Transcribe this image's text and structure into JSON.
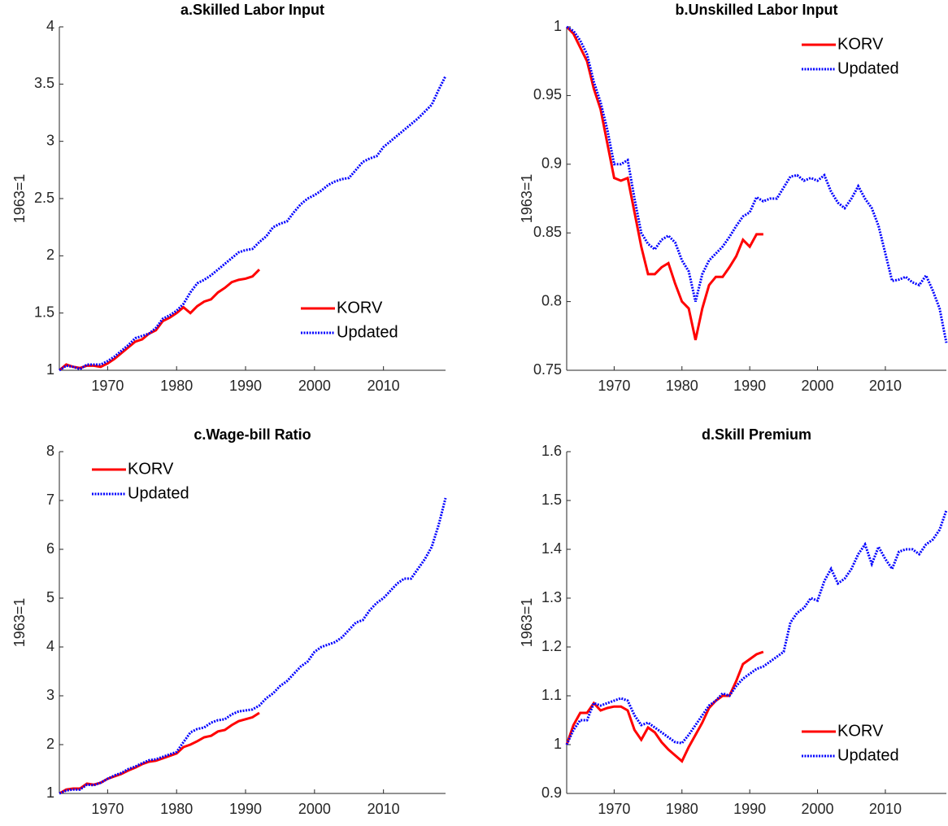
{
  "chart_data": [
    {
      "type": "line",
      "title": "a.Skilled Labor Input",
      "ylabel": "1963=1",
      "x": [
        1963,
        1964,
        1965,
        1966,
        1967,
        1968,
        1969,
        1970,
        1971,
        1972,
        1973,
        1974,
        1975,
        1976,
        1977,
        1978,
        1979,
        1980,
        1981,
        1982,
        1983,
        1984,
        1985,
        1986,
        1987,
        1988,
        1989,
        1990,
        1991,
        1992,
        1993,
        1994,
        1995,
        1996,
        1997,
        1998,
        1999,
        2000,
        2001,
        2002,
        2003,
        2004,
        2005,
        2006,
        2007,
        2008,
        2009,
        2010,
        2011,
        2012,
        2013,
        2014,
        2015,
        2016,
        2017,
        2018,
        2019
      ],
      "xlim": [
        1963,
        2019
      ],
      "xticks": [
        1970,
        1980,
        1990,
        2000,
        2010
      ],
      "ylim": [
        1,
        4
      ],
      "yticks": [
        1,
        1.5,
        2,
        2.5,
        3,
        3.5,
        4
      ],
      "legend": "lower right",
      "series": [
        {
          "name": "KORV",
          "color": "#ff0000",
          "linestyle": "solid",
          "values": [
            1.0,
            1.05,
            1.03,
            1.02,
            1.04,
            1.04,
            1.03,
            1.06,
            1.1,
            1.15,
            1.2,
            1.25,
            1.27,
            1.32,
            1.35,
            1.43,
            1.46,
            1.5,
            1.55,
            1.5,
            1.56,
            1.6,
            1.62,
            1.68,
            1.72,
            1.77,
            1.79,
            1.8,
            1.82,
            1.88,
            null,
            null,
            null,
            null,
            null,
            null,
            null,
            null,
            null,
            null,
            null,
            null,
            null,
            null,
            null,
            null,
            null,
            null,
            null,
            null,
            null,
            null,
            null,
            null,
            null,
            null,
            null
          ]
        },
        {
          "name": "Updated",
          "color": "#0000ff",
          "linestyle": "dotted",
          "values": [
            1.0,
            1.04,
            1.03,
            1.01,
            1.05,
            1.05,
            1.05,
            1.08,
            1.12,
            1.17,
            1.22,
            1.28,
            1.3,
            1.32,
            1.37,
            1.45,
            1.48,
            1.52,
            1.58,
            1.68,
            1.76,
            1.79,
            1.83,
            1.88,
            1.93,
            1.98,
            2.03,
            2.05,
            2.06,
            2.12,
            2.17,
            2.25,
            2.28,
            2.3,
            2.38,
            2.45,
            2.5,
            2.53,
            2.57,
            2.62,
            2.65,
            2.67,
            2.68,
            2.75,
            2.82,
            2.85,
            2.87,
            2.95,
            3.0,
            3.05,
            3.1,
            3.15,
            3.2,
            3.26,
            3.32,
            3.45,
            3.57
          ]
        }
      ]
    },
    {
      "type": "line",
      "title": "b.Unskilled Labor Input",
      "ylabel": "1963=1",
      "x": [
        1963,
        1964,
        1965,
        1966,
        1967,
        1968,
        1969,
        1970,
        1971,
        1972,
        1973,
        1974,
        1975,
        1976,
        1977,
        1978,
        1979,
        1980,
        1981,
        1982,
        1983,
        1984,
        1985,
        1986,
        1987,
        1988,
        1989,
        1990,
        1991,
        1992,
        1993,
        1994,
        1995,
        1996,
        1997,
        1998,
        1999,
        2000,
        2001,
        2002,
        2003,
        2004,
        2005,
        2006,
        2007,
        2008,
        2009,
        2010,
        2011,
        2012,
        2013,
        2014,
        2015,
        2016,
        2017,
        2018,
        2019
      ],
      "xlim": [
        1963,
        2019
      ],
      "xticks": [
        1970,
        1980,
        1990,
        2000,
        2010
      ],
      "ylim": [
        0.75,
        1
      ],
      "yticks": [
        0.75,
        0.8,
        0.85,
        0.9,
        0.95,
        1
      ],
      "legend": "upper right",
      "series": [
        {
          "name": "KORV",
          "color": "#ff0000",
          "linestyle": "solid",
          "values": [
            1.0,
            0.995,
            0.985,
            0.975,
            0.955,
            0.94,
            0.915,
            0.89,
            0.888,
            0.89,
            0.865,
            0.84,
            0.82,
            0.82,
            0.825,
            0.828,
            0.813,
            0.8,
            0.795,
            0.772,
            0.795,
            0.812,
            0.818,
            0.818,
            0.825,
            0.833,
            0.845,
            0.84,
            0.849,
            0.849,
            null,
            null,
            null,
            null,
            null,
            null,
            null,
            null,
            null,
            null,
            null,
            null,
            null,
            null,
            null,
            null,
            null,
            null,
            null,
            null,
            null,
            null,
            null,
            null,
            null,
            null,
            null
          ]
        },
        {
          "name": "Updated",
          "color": "#0000ff",
          "linestyle": "dotted",
          "values": [
            1.0,
            0.997,
            0.99,
            0.98,
            0.96,
            0.945,
            0.925,
            0.9,
            0.9,
            0.903,
            0.875,
            0.85,
            0.842,
            0.838,
            0.845,
            0.848,
            0.843,
            0.83,
            0.822,
            0.8,
            0.82,
            0.83,
            0.835,
            0.84,
            0.847,
            0.855,
            0.862,
            0.865,
            0.876,
            0.873,
            0.875,
            0.875,
            0.883,
            0.891,
            0.892,
            0.888,
            0.89,
            0.888,
            0.892,
            0.88,
            0.872,
            0.868,
            0.875,
            0.884,
            0.875,
            0.868,
            0.855,
            0.835,
            0.815,
            0.816,
            0.818,
            0.814,
            0.812,
            0.819,
            0.808,
            0.795,
            0.77
          ]
        }
      ]
    },
    {
      "type": "line",
      "title": "c.Wage-bill Ratio",
      "ylabel": "1963=1",
      "x": [
        1963,
        1964,
        1965,
        1966,
        1967,
        1968,
        1969,
        1970,
        1971,
        1972,
        1973,
        1974,
        1975,
        1976,
        1977,
        1978,
        1979,
        1980,
        1981,
        1982,
        1983,
        1984,
        1985,
        1986,
        1987,
        1988,
        1989,
        1990,
        1991,
        1992,
        1993,
        1994,
        1995,
        1996,
        1997,
        1998,
        1999,
        2000,
        2001,
        2002,
        2003,
        2004,
        2005,
        2006,
        2007,
        2008,
        2009,
        2010,
        2011,
        2012,
        2013,
        2014,
        2015,
        2016,
        2017,
        2018,
        2019
      ],
      "xlim": [
        1963,
        2019
      ],
      "xticks": [
        1970,
        1980,
        1990,
        2000,
        2010
      ],
      "ylim": [
        1,
        8
      ],
      "yticks": [
        1,
        2,
        3,
        4,
        5,
        6,
        7,
        8
      ],
      "legend": "upper left",
      "series": [
        {
          "name": "KORV",
          "color": "#ff0000",
          "linestyle": "solid",
          "values": [
            1.0,
            1.08,
            1.1,
            1.1,
            1.2,
            1.18,
            1.22,
            1.3,
            1.35,
            1.4,
            1.47,
            1.53,
            1.6,
            1.65,
            1.67,
            1.72,
            1.77,
            1.82,
            1.95,
            2.0,
            2.07,
            2.15,
            2.18,
            2.27,
            2.3,
            2.4,
            2.48,
            2.52,
            2.56,
            2.65,
            null,
            null,
            null,
            null,
            null,
            null,
            null,
            null,
            null,
            null,
            null,
            null,
            null,
            null,
            null,
            null,
            null,
            null,
            null,
            null,
            null,
            null,
            null,
            null,
            null,
            null,
            null
          ]
        },
        {
          "name": "Updated",
          "color": "#0000ff",
          "linestyle": "dotted",
          "values": [
            1.0,
            1.06,
            1.08,
            1.08,
            1.18,
            1.17,
            1.22,
            1.3,
            1.37,
            1.42,
            1.5,
            1.55,
            1.62,
            1.68,
            1.7,
            1.75,
            1.8,
            1.85,
            2.05,
            2.25,
            2.32,
            2.35,
            2.45,
            2.5,
            2.52,
            2.62,
            2.68,
            2.7,
            2.72,
            2.8,
            2.95,
            3.05,
            3.2,
            3.3,
            3.45,
            3.6,
            3.7,
            3.9,
            4.0,
            4.05,
            4.1,
            4.2,
            4.35,
            4.5,
            4.55,
            4.75,
            4.9,
            5.0,
            5.15,
            5.3,
            5.4,
            5.4,
            5.6,
            5.8,
            6.05,
            6.5,
            7.05
          ]
        }
      ]
    },
    {
      "type": "line",
      "title": "d.Skill Premium",
      "ylabel": "1963=1",
      "x": [
        1963,
        1964,
        1965,
        1966,
        1967,
        1968,
        1969,
        1970,
        1971,
        1972,
        1973,
        1974,
        1975,
        1976,
        1977,
        1978,
        1979,
        1980,
        1981,
        1982,
        1983,
        1984,
        1985,
        1986,
        1987,
        1988,
        1989,
        1990,
        1991,
        1992,
        1993,
        1994,
        1995,
        1996,
        1997,
        1998,
        1999,
        2000,
        2001,
        2002,
        2003,
        2004,
        2005,
        2006,
        2007,
        2008,
        2009,
        2010,
        2011,
        2012,
        2013,
        2014,
        2015,
        2016,
        2017,
        2018,
        2019
      ],
      "xlim": [
        1963,
        2019
      ],
      "xticks": [
        1970,
        1980,
        1990,
        2000,
        2010
      ],
      "ylim": [
        0.9,
        1.6
      ],
      "yticks": [
        0.9,
        1,
        1.1,
        1.2,
        1.3,
        1.4,
        1.5,
        1.6
      ],
      "legend": "lower right",
      "series": [
        {
          "name": "KORV",
          "color": "#ff0000",
          "linestyle": "solid",
          "values": [
            1.0,
            1.04,
            1.065,
            1.065,
            1.085,
            1.07,
            1.075,
            1.078,
            1.078,
            1.07,
            1.03,
            1.01,
            1.035,
            1.025,
            1.005,
            0.99,
            0.978,
            0.966,
            0.995,
            1.02,
            1.045,
            1.075,
            1.09,
            1.1,
            1.1,
            1.13,
            1.165,
            1.175,
            1.185,
            1.19,
            null,
            null,
            null,
            null,
            null,
            null,
            null,
            null,
            null,
            null,
            null,
            null,
            null,
            null,
            null,
            null,
            null,
            null,
            null,
            null,
            null,
            null,
            null,
            null,
            null,
            null,
            null
          ]
        },
        {
          "name": "Updated",
          "color": "#0000ff",
          "linestyle": "dotted",
          "values": [
            1.0,
            1.03,
            1.05,
            1.05,
            1.085,
            1.08,
            1.085,
            1.09,
            1.095,
            1.09,
            1.06,
            1.04,
            1.045,
            1.035,
            1.025,
            1.015,
            1.005,
            1.003,
            1.02,
            1.04,
            1.06,
            1.08,
            1.09,
            1.105,
            1.1,
            1.12,
            1.135,
            1.145,
            1.155,
            1.16,
            1.17,
            1.18,
            1.19,
            1.25,
            1.27,
            1.28,
            1.3,
            1.295,
            1.335,
            1.36,
            1.33,
            1.34,
            1.36,
            1.39,
            1.41,
            1.37,
            1.405,
            1.38,
            1.36,
            1.395,
            1.4,
            1.4,
            1.39,
            1.41,
            1.42,
            1.44,
            1.48
          ]
        }
      ]
    }
  ]
}
